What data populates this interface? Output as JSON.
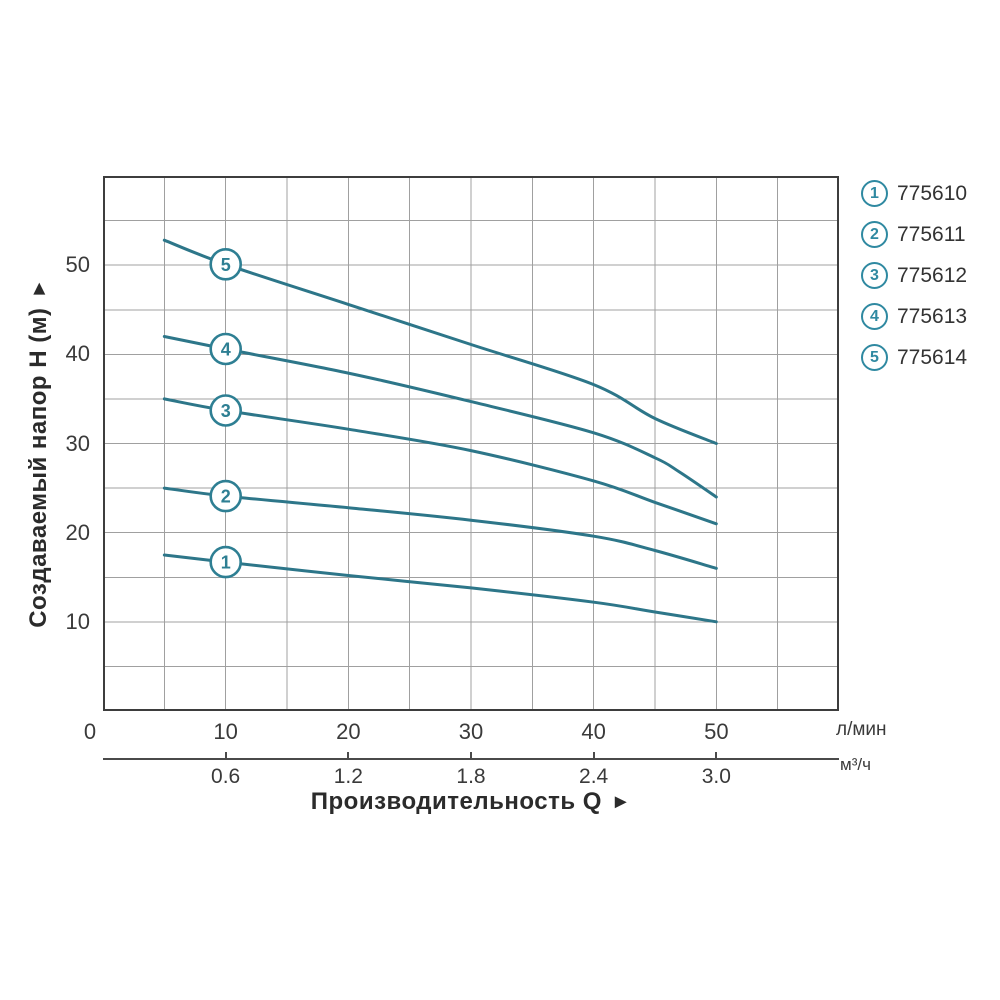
{
  "figure": {
    "y_axis_title": "Создаваемый напор H (м)",
    "y_axis_arrow": "►",
    "x_axis_title": "Производительность Q",
    "x_axis_arrow": "►"
  },
  "colors": {
    "curve": "#2d7689",
    "marker_circle": "#2e7f93",
    "legend_circle": "#2f89a1",
    "grid": "#a0a0a0",
    "plot_border": "#3d3d3d",
    "text": "#3a3a3a",
    "secondary_axis": "#4a4a4a"
  },
  "legend": {
    "items": [
      {
        "marker": "1",
        "code": "775610"
      },
      {
        "marker": "2",
        "code": "775611"
      },
      {
        "marker": "3",
        "code": "775612"
      },
      {
        "marker": "4",
        "code": "775613"
      },
      {
        "marker": "5",
        "code": "775614"
      }
    ]
  },
  "chart_data": {
    "type": "line",
    "title": "",
    "xlabel": "Производительность Q",
    "ylabel": "Создаваемый напор H (м)",
    "x_range_lmin": [
      0,
      60
    ],
    "y_range_m": [
      0,
      60
    ],
    "grid_step": 5,
    "grid": true,
    "legend_position": "right-outside",
    "x_axis_primary": {
      "unit": "л/мин",
      "ticks": [
        0,
        10,
        20,
        30,
        40,
        50
      ]
    },
    "x_axis_secondary": {
      "unit": "м³/ч",
      "tick_labels": [
        "0.6",
        "1.2",
        "1.8",
        "2.4",
        "3.0"
      ],
      "tick_positions_lmin": [
        10,
        20,
        30,
        40,
        50
      ]
    },
    "y_axis": {
      "unit": "м",
      "ticks": [
        10,
        20,
        30,
        40,
        50
      ]
    },
    "marker_at_q": 10,
    "series": [
      {
        "marker": "1",
        "code": "775610",
        "points_q_h": [
          [
            5,
            17.5
          ],
          [
            10,
            16.7
          ],
          [
            20,
            15.2
          ],
          [
            30,
            13.8
          ],
          [
            40,
            12.2
          ],
          [
            45,
            11.1
          ],
          [
            50,
            10
          ]
        ]
      },
      {
        "marker": "2",
        "code": "775611",
        "points_q_h": [
          [
            5,
            25
          ],
          [
            10,
            24.1
          ],
          [
            20,
            22.8
          ],
          [
            30,
            21.4
          ],
          [
            40,
            19.6
          ],
          [
            45,
            18
          ],
          [
            50,
            16
          ]
        ]
      },
      {
        "marker": "3",
        "code": "775612",
        "points_q_h": [
          [
            5,
            35
          ],
          [
            10,
            33.7
          ],
          [
            20,
            31.6
          ],
          [
            30,
            29.2
          ],
          [
            40,
            25.8
          ],
          [
            45,
            23.4
          ],
          [
            50,
            21
          ]
        ]
      },
      {
        "marker": "4",
        "code": "775613",
        "points_q_h": [
          [
            5,
            42
          ],
          [
            10,
            40.6
          ],
          [
            20,
            37.9
          ],
          [
            30,
            34.7
          ],
          [
            40,
            31.2
          ],
          [
            45,
            28.4
          ],
          [
            47,
            26.8
          ],
          [
            50,
            24
          ]
        ]
      },
      {
        "marker": "5",
        "code": "775614",
        "points_q_h": [
          [
            5,
            52.8
          ],
          [
            10,
            50.1
          ],
          [
            20,
            45.6
          ],
          [
            30,
            41.1
          ],
          [
            40,
            36.6
          ],
          [
            45,
            32.8
          ],
          [
            50,
            30
          ]
        ]
      }
    ]
  }
}
